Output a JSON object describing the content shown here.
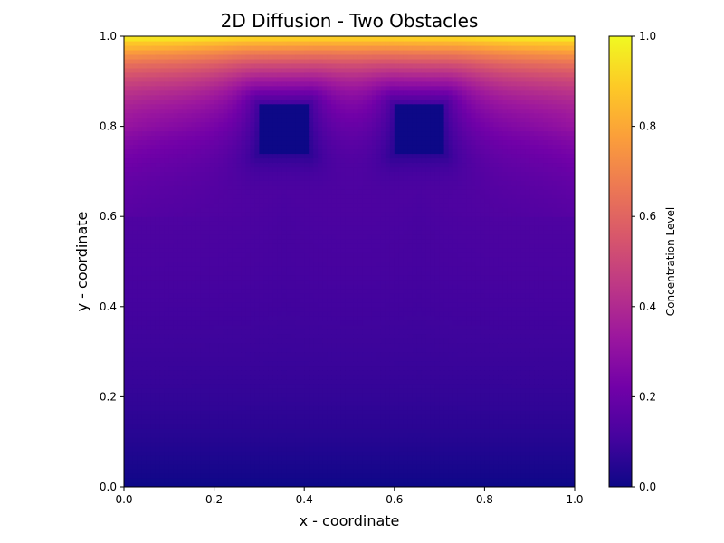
{
  "colors": {
    "colormap": "plasma",
    "colormap_stops": [
      "#0d0887",
      "#46039f",
      "#7201a8",
      "#9c179e",
      "#bd3786",
      "#d8576b",
      "#ed7953",
      "#fb9f3a",
      "#fdca26",
      "#f0f921"
    ],
    "axis_color": "#000000",
    "background": "#ffffff"
  },
  "chart_data": {
    "type": "heatmap",
    "title": "2D Diffusion - Two Obstacles",
    "xlabel": "x - coordinate",
    "ylabel": "y - coordinate",
    "xlim": [
      0.0,
      1.0
    ],
    "ylim": [
      0.0,
      1.0
    ],
    "x_ticks": [
      "0.0",
      "0.2",
      "0.4",
      "0.6",
      "0.8",
      "1.0"
    ],
    "y_ticks": [
      "0.0",
      "0.2",
      "0.4",
      "0.6",
      "0.8",
      "1.0"
    ],
    "grid": false,
    "colorbar": {
      "label": "Concentration Level",
      "range": [
        0.0,
        1.0
      ],
      "ticks": [
        "0.0",
        "0.2",
        "0.4",
        "0.6",
        "0.8",
        "1.0"
      ],
      "colormap": "plasma"
    },
    "boundary_conditions": {
      "top": 1.0,
      "bottom": 0.0
    },
    "obstacles": [
      {
        "x": [
          0.3,
          0.41
        ],
        "y": [
          0.74,
          0.85
        ],
        "value": 0.0
      },
      {
        "x": [
          0.6,
          0.71
        ],
        "y": [
          0.74,
          0.85
        ],
        "value": 0.0
      }
    ],
    "sample_values": [
      {
        "x": 0.5,
        "y": 1.0,
        "value": 1.0
      },
      {
        "x": 0.5,
        "y": 0.9,
        "value": 0.62
      },
      {
        "x": 0.5,
        "y": 0.8,
        "value": 0.28
      },
      {
        "x": 0.05,
        "y": 0.8,
        "value": 0.3
      },
      {
        "x": 0.5,
        "y": 0.6,
        "value": 0.12
      },
      {
        "x": 0.5,
        "y": 0.4,
        "value": 0.11
      },
      {
        "x": 0.5,
        "y": 0.2,
        "value": 0.06
      },
      {
        "x": 0.5,
        "y": 0.0,
        "value": 0.0
      }
    ]
  }
}
